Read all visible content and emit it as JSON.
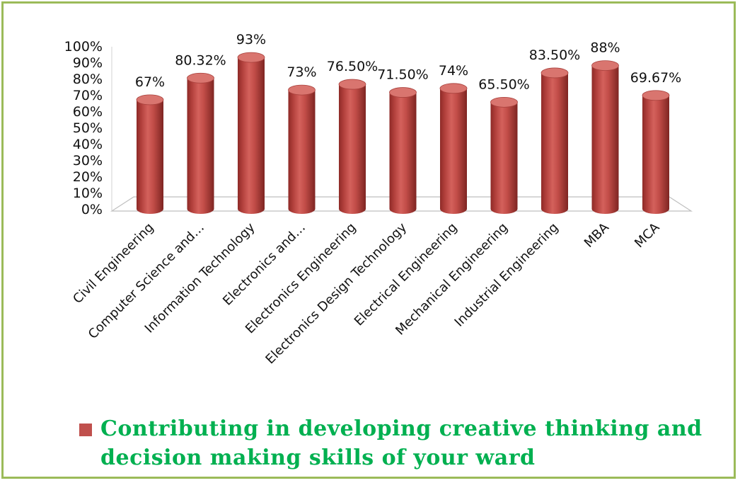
{
  "chart_data": {
    "type": "bar",
    "style": "3d-cylinder",
    "categories": [
      "Civil Engineering",
      "Computer Science and…",
      "Information Technology",
      "Electronics and…",
      "Electronics Engineering",
      "Electronics Design Technology",
      "Electrical Engineering",
      "Mechanical Engineering",
      "Industrial Engineering",
      "MBA",
      "MCA"
    ],
    "series": [
      {
        "name": "Contributing in developing creative thinking and decision making skills of your ward",
        "values": [
          67,
          80.32,
          93,
          73,
          76.5,
          71.5,
          74,
          65.5,
          83.5,
          88,
          69.67
        ],
        "data_labels": [
          "67%",
          "80.32%",
          "93%",
          "73%",
          "76.50%",
          "71.50%",
          "74%",
          "65.50%",
          "83.50%",
          "88%",
          "69.67%"
        ],
        "color": "#c0504d"
      }
    ],
    "yticks": [
      "0%",
      "10%",
      "20%",
      "30%",
      "40%",
      "50%",
      "60%",
      "70%",
      "80%",
      "90%",
      "100%"
    ],
    "ylim": [
      0,
      100
    ],
    "grid": false,
    "legend_position": "bottom"
  },
  "colors": {
    "bar_fill": "#c0504d",
    "bar_top": "#d9756f",
    "frame_border": "#9bbb59",
    "legend_text": "#00b050"
  }
}
